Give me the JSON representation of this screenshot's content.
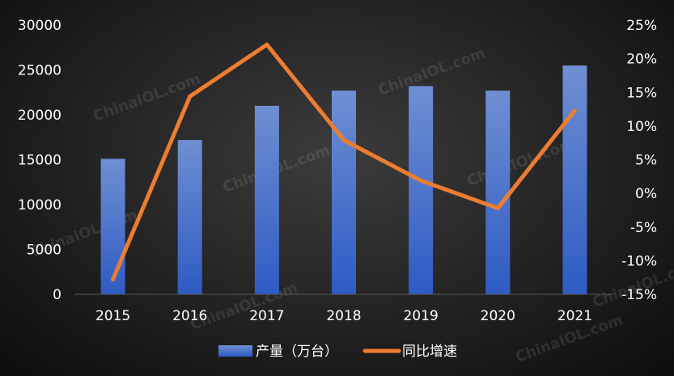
{
  "chart_data": {
    "type": "bar+line",
    "categories": [
      "2015",
      "2016",
      "2017",
      "2018",
      "2019",
      "2020",
      "2021"
    ],
    "series": [
      {
        "name": "产量（万台）",
        "type": "bar",
        "axis": "left",
        "color": "#4472c4",
        "values": [
          15100,
          17200,
          21000,
          22700,
          23200,
          22700,
          25500
        ]
      },
      {
        "name": "同比增速",
        "type": "line",
        "axis": "right",
        "color": "#ed7d31",
        "values": [
          -12.8,
          14.4,
          22.1,
          7.9,
          1.9,
          -2.2,
          12.3
        ]
      }
    ],
    "y_left": {
      "ylim": [
        0,
        30000
      ],
      "ticks": [
        "0",
        "5000",
        "10000",
        "15000",
        "20000",
        "25000",
        "30000"
      ]
    },
    "y_right": {
      "ylim": [
        -15,
        25
      ],
      "ticks": [
        "-15%",
        "-10%",
        "-5%",
        "0%",
        "5%",
        "10%",
        "15%",
        "20%",
        "25%"
      ]
    },
    "grid": false,
    "legend": "bottom-center"
  },
  "watermark": "ChinaIOL.com"
}
